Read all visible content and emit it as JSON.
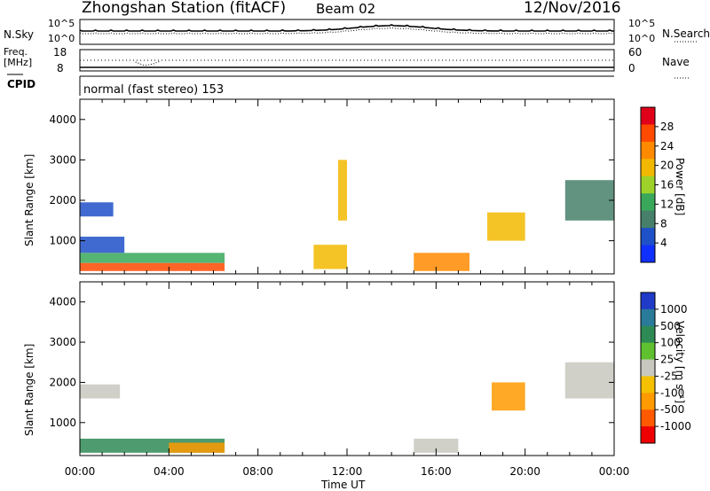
{
  "header": {
    "station": "Zhongshan Station (fitACF)",
    "beam": "Beam 02",
    "date": "12/Nov/2016"
  },
  "noise_panel": {
    "left_label": "N.Sky",
    "left_top": "10^5",
    "left_bottom": "10^0",
    "right_top": "10^5",
    "right_bottom": "10^0",
    "right_label": "N.Search"
  },
  "freq_panel": {
    "label_line1": "Freq.",
    "label_line2": "[MHz]",
    "left_top": "18",
    "left_bottom": "8",
    "right_top": "60",
    "right_bottom": "0",
    "right_label": "Nave"
  },
  "cpid": {
    "label": "CPID",
    "text": "normal (fast stereo) 153"
  },
  "power_panel": {
    "ylabel": "Slant Range [km]",
    "colorbar_label": "Power [dB]",
    "colorbar_ticks": [
      "28",
      "24",
      "20",
      "16",
      "12",
      "8",
      "4"
    ],
    "colorbar_colors": [
      "#e0001a",
      "#ff4a00",
      "#ff8a00",
      "#f2b800",
      "#9ed22a",
      "#3aa85a",
      "#46806a",
      "#1e50c8",
      "#1030ff"
    ]
  },
  "velocity_panel": {
    "ylabel": "Slant Range [km]",
    "colorbar_label": "Velocity [m s⁻¹]",
    "colorbar_ticks": [
      "1000",
      "500",
      "100",
      "25",
      "-25",
      "-100",
      "-500",
      "-1000"
    ],
    "colorbar_colors": [
      "#1f3bc8",
      "#2a7a9a",
      "#2e8a55",
      "#5fc030",
      "#c8c8c0",
      "#f4c000",
      "#ff9a00",
      "#ff5a00",
      "#ee0000"
    ]
  },
  "xaxis": {
    "label": "Time UT",
    "ticks": [
      "00:00",
      "04:00",
      "08:00",
      "12:00",
      "16:00",
      "20:00",
      "00:00"
    ]
  },
  "chart_data": {
    "type": "heatmap",
    "title": "Zhongshan Station (fitACF)  Beam 02  12/Nov/2016",
    "xlabel": "Time UT",
    "ylabel": "Slant Range [km]",
    "x_range_hours": [
      0,
      24
    ],
    "y_range_km": [
      180,
      4500
    ],
    "y_ticks": [
      1000,
      2000,
      3000,
      4000
    ],
    "power_regions": [
      {
        "t0": 0.0,
        "t1": 6.5,
        "r0": 250,
        "r1": 450,
        "value": 26
      },
      {
        "t0": 0.0,
        "t1": 6.5,
        "r0": 450,
        "r1": 700,
        "value": 12
      },
      {
        "t0": 0.0,
        "t1": 2.0,
        "r0": 700,
        "r1": 1100,
        "value": 6
      },
      {
        "t0": 0.0,
        "t1": 1.5,
        "r0": 1600,
        "r1": 1950,
        "value": 6
      },
      {
        "t0": 10.5,
        "t1": 12.0,
        "r0": 300,
        "r1": 900,
        "value": 20
      },
      {
        "t0": 11.6,
        "t1": 12.0,
        "r0": 1500,
        "r1": 3000,
        "value": 18
      },
      {
        "t0": 15.0,
        "t1": 17.5,
        "r0": 250,
        "r1": 700,
        "value": 22
      },
      {
        "t0": 18.3,
        "t1": 20.0,
        "r0": 1000,
        "r1": 1700,
        "value": 20
      },
      {
        "t0": 21.8,
        "t1": 24.0,
        "r0": 1500,
        "r1": 2500,
        "value": 8
      }
    ],
    "velocity_regions": [
      {
        "t0": 0.0,
        "t1": 6.5,
        "r0": 250,
        "r1": 600,
        "value": 100
      },
      {
        "t0": 4.0,
        "t1": 6.5,
        "r0": 250,
        "r1": 500,
        "value": -300
      },
      {
        "t0": 0.0,
        "t1": 1.8,
        "r0": 1600,
        "r1": 1950,
        "value": 0
      },
      {
        "t0": 15.0,
        "t1": 17.0,
        "r0": 250,
        "r1": 600,
        "value": 0
      },
      {
        "t0": 18.5,
        "t1": 20.0,
        "r0": 1300,
        "r1": 2000,
        "value": -400
      },
      {
        "t0": 21.8,
        "t1": 24.0,
        "r0": 1600,
        "r1": 2500,
        "value": 0
      }
    ]
  }
}
